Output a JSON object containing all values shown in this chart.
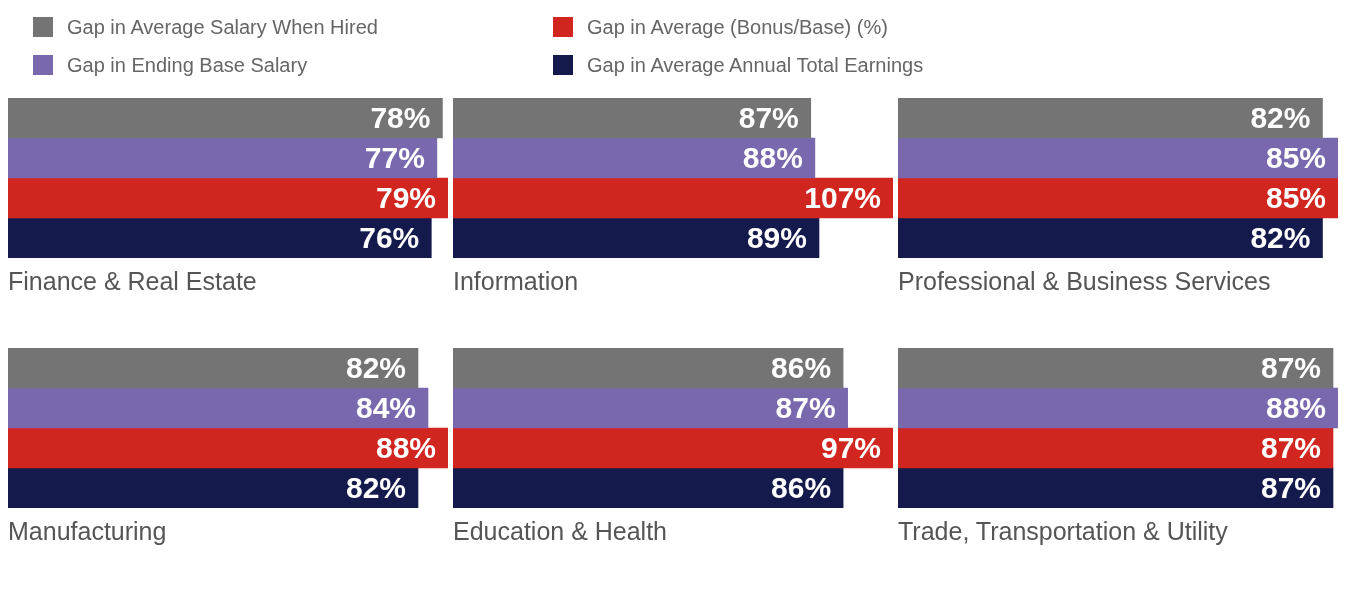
{
  "chart_data": [
    {
      "type": "bar",
      "orientation": "horizontal",
      "title": "Finance & Real Estate",
      "categories": [
        null
      ],
      "legend": "top",
      "series": [
        {
          "name": "Gap in Average Salary When Hired",
          "color": "#747474",
          "values": [
            78
          ],
          "value_labels": [
            "78%"
          ]
        },
        {
          "name": "Gap in Ending Base Salary",
          "color": "#7a68ae",
          "values": [
            77
          ],
          "value_labels": [
            "77%"
          ]
        },
        {
          "name": "Gap in Average (Bonus/Base) (%)",
          "color": "#d0261f",
          "values": [
            79
          ],
          "value_labels": [
            "79%"
          ]
        },
        {
          "name": "Gap in Average Annual Total Earnings",
          "color": "#141a4c",
          "values": [
            76
          ],
          "value_labels": [
            "76%"
          ]
        }
      ]
    },
    {
      "type": "bar",
      "orientation": "horizontal",
      "title": "Information",
      "categories": [
        null
      ],
      "series": [
        {
          "color": "#747474",
          "values": [
            87
          ],
          "value_labels": [
            "87%"
          ]
        },
        {
          "color": "#7a68ae",
          "values": [
            88
          ],
          "value_labels": [
            "88%"
          ]
        },
        {
          "color": "#d0261f",
          "values": [
            107
          ],
          "value_labels": [
            "107%"
          ]
        },
        {
          "color": "#141a4c",
          "values": [
            89
          ],
          "value_labels": [
            "89%"
          ]
        }
      ]
    },
    {
      "type": "bar",
      "orientation": "horizontal",
      "title": "Professional & Business Services",
      "categories": [
        null
      ],
      "series": [
        {
          "color": "#747474",
          "values": [
            82
          ],
          "value_labels": [
            "82%"
          ]
        },
        {
          "color": "#7a68ae",
          "values": [
            85
          ],
          "value_labels": [
            "85%"
          ]
        },
        {
          "color": "#d0261f",
          "values": [
            85
          ],
          "value_labels": [
            "85%"
          ]
        },
        {
          "color": "#141a4c",
          "values": [
            82
          ],
          "value_labels": [
            "82%"
          ]
        }
      ]
    },
    {
      "type": "bar",
      "orientation": "horizontal",
      "title": "Manufacturing",
      "categories": [
        null
      ],
      "series": [
        {
          "color": "#747474",
          "values": [
            82
          ],
          "value_labels": [
            "82%"
          ]
        },
        {
          "color": "#7a68ae",
          "values": [
            84
          ],
          "value_labels": [
            "84%"
          ]
        },
        {
          "color": "#d0261f",
          "values": [
            88
          ],
          "value_labels": [
            "88%"
          ]
        },
        {
          "color": "#141a4c",
          "values": [
            82
          ],
          "value_labels": [
            "82%"
          ]
        }
      ]
    },
    {
      "type": "bar",
      "orientation": "horizontal",
      "title": "Education & Health",
      "categories": [
        null
      ],
      "series": [
        {
          "color": "#747474",
          "values": [
            86
          ],
          "value_labels": [
            "86%"
          ]
        },
        {
          "color": "#7a68ae",
          "values": [
            87
          ],
          "value_labels": [
            "87%"
          ]
        },
        {
          "color": "#d0261f",
          "values": [
            97
          ],
          "value_labels": [
            "97%"
          ]
        },
        {
          "color": "#141a4c",
          "values": [
            86
          ],
          "value_labels": [
            "86%"
          ]
        }
      ]
    },
    {
      "type": "bar",
      "orientation": "horizontal",
      "title": "Trade, Transportation & Utility",
      "categories": [
        null
      ],
      "series": [
        {
          "color": "#747474",
          "values": [
            87
          ],
          "value_labels": [
            "87%"
          ]
        },
        {
          "color": "#7a68ae",
          "values": [
            88
          ],
          "value_labels": [
            "88%"
          ]
        },
        {
          "color": "#d0261f",
          "values": [
            87
          ],
          "value_labels": [
            "87%"
          ]
        },
        {
          "color": "#141a4c",
          "values": [
            87
          ],
          "value_labels": [
            "87%"
          ]
        }
      ]
    }
  ]
}
